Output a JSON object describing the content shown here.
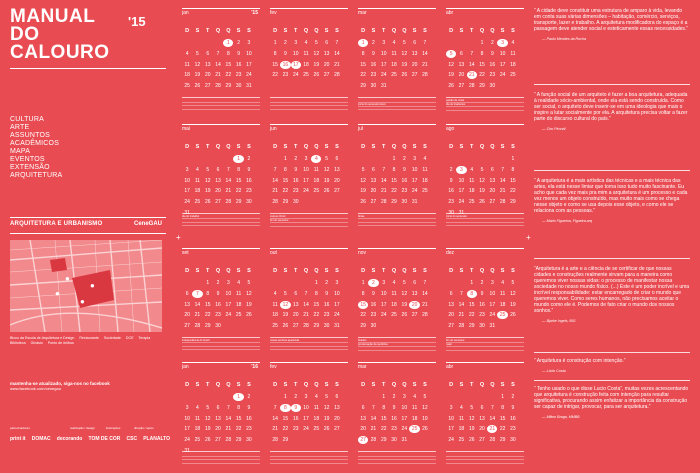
{
  "header": {
    "title_lines": [
      "MANUAL",
      "DO",
      "CALOURO"
    ],
    "year": "'15"
  },
  "menu": [
    "CULTURA",
    "ARTE",
    "ASSUNTOS",
    "ACADÊMICOS",
    "MAPA",
    "EVENTOS",
    "EXTENSÃO",
    "ARQUITETURA"
  ],
  "department": "ARQUITETURA E URBANISMO",
  "org": "CeneGAU",
  "legend": [
    "Bloco da Escola de Arquitetura e Design",
    "Restaurante",
    "Sociedade",
    "DCE",
    "Terapia",
    "Biblioteca",
    "Ginásio",
    "Ponto de ônibus"
  ],
  "facebook": {
    "line1": "mantenha-se atualizado, siga-nos no facebook",
    "line2": "www.facebook.com/cenegau"
  },
  "sponsors": {
    "labels": [
      "patrocinadores",
      "realização / design",
      "ilustrações",
      "direção / apoio"
    ],
    "logos": [
      "print it",
      "DOMAC",
      "decorando",
      "TOM DE COR",
      "CSC",
      "PLANALTO"
    ]
  },
  "weekdays": [
    "D",
    "S",
    "T",
    "Q",
    "Q",
    "S",
    "S"
  ],
  "months": [
    {
      "name": "jan",
      "year": "'15",
      "rows": [
        [
          "",
          "",
          "",
          "",
          "1",
          "2",
          "3"
        ],
        [
          "4",
          "5",
          "6",
          "7",
          "8",
          "9",
          "10"
        ],
        [
          "11",
          "12",
          "13",
          "14",
          "15",
          "16",
          "17"
        ],
        [
          "18",
          "19",
          "20",
          "21",
          "22",
          "23",
          "24"
        ],
        [
          "25",
          "26",
          "27",
          "28",
          "29",
          "30",
          "31"
        ]
      ],
      "notes": [
        "",
        "",
        ""
      ]
    },
    {
      "name": "fev",
      "year": "",
      "rows": [
        [
          "1",
          "2",
          "3",
          "4",
          "5",
          "6",
          "7"
        ],
        [
          "8",
          "9",
          "10",
          "11",
          "12",
          "13",
          "14"
        ],
        [
          "15",
          "16",
          "17",
          "18",
          "19",
          "20",
          "21"
        ],
        [
          "22",
          "23",
          "24",
          "25",
          "26",
          "27",
          "28"
        ]
      ],
      "notes": [
        "",
        "",
        ""
      ]
    },
    {
      "name": "mar",
      "year": "",
      "rows": [
        [
          "1",
          "2",
          "3",
          "4",
          "5",
          "6",
          "7"
        ],
        [
          "8",
          "9",
          "10",
          "11",
          "12",
          "13",
          "14"
        ],
        [
          "15",
          "16",
          "17",
          "18",
          "19",
          "20",
          "21"
        ],
        [
          "22",
          "23",
          "24",
          "25",
          "26",
          "27",
          "28"
        ],
        [
          "29",
          "30",
          "31",
          "",
          "",
          "",
          ""
        ]
      ],
      "notes": [
        "",
        "inicio do semestre letivo",
        ""
      ]
    },
    {
      "name": "abr",
      "year": "",
      "rows": [
        [
          "",
          "",
          "",
          "1",
          "2",
          "3",
          "4"
        ],
        [
          "5",
          "6",
          "7",
          "8",
          "9",
          "10",
          "11"
        ],
        [
          "12",
          "13",
          "14",
          "15",
          "16",
          "17",
          "18"
        ],
        [
          "19",
          "20",
          "21",
          "22",
          "23",
          "24",
          "25"
        ],
        [
          "26",
          "27",
          "28",
          "29",
          "30",
          "",
          ""
        ]
      ],
      "notes": [
        "paixão de cristo",
        "dia de tiradentes",
        ""
      ]
    },
    {
      "name": "mai",
      "year": "",
      "rows": [
        [
          "",
          "",
          "",
          "",
          "",
          "1",
          "2"
        ],
        [
          "3",
          "4",
          "5",
          "6",
          "7",
          "8",
          "9"
        ],
        [
          "10",
          "11",
          "12",
          "13",
          "14",
          "15",
          "16"
        ],
        [
          "17",
          "18",
          "19",
          "20",
          "21",
          "22",
          "23"
        ],
        [
          "24",
          "25",
          "26",
          "27",
          "28",
          "29",
          "30"
        ],
        [
          "31",
          "",
          "",
          "",
          "",
          "",
          ""
        ]
      ],
      "notes": [
        "dia do trabalho",
        "",
        ""
      ]
    },
    {
      "name": "jun",
      "year": "",
      "rows": [
        [
          "",
          "1",
          "2",
          "3",
          "4",
          "5",
          "6"
        ],
        [
          "7",
          "8",
          "9",
          "10",
          "11",
          "12",
          "13"
        ],
        [
          "14",
          "15",
          "16",
          "17",
          "18",
          "19",
          "20"
        ],
        [
          "21",
          "22",
          "23",
          "24",
          "25",
          "26",
          "27"
        ],
        [
          "28",
          "29",
          "30",
          "",
          "",
          "",
          ""
        ]
      ],
      "notes": [
        "corpus christi",
        "fim do semestre",
        ""
      ]
    },
    {
      "name": "jul",
      "year": "",
      "rows": [
        [
          "",
          "",
          "",
          "1",
          "2",
          "3",
          "4"
        ],
        [
          "5",
          "6",
          "7",
          "8",
          "9",
          "10",
          "11"
        ],
        [
          "12",
          "13",
          "14",
          "15",
          "16",
          "17",
          "18"
        ],
        [
          "19",
          "20",
          "21",
          "22",
          "23",
          "24",
          "25"
        ],
        [
          "26",
          "27",
          "28",
          "29",
          "30",
          "31",
          ""
        ]
      ],
      "notes": [
        "férias",
        "",
        ""
      ]
    },
    {
      "name": "ago",
      "year": "",
      "rows": [
        [
          "",
          "",
          "",
          "",
          "",
          "",
          "1"
        ],
        [
          "2",
          "3",
          "4",
          "5",
          "6",
          "7",
          "8"
        ],
        [
          "9",
          "10",
          "11",
          "12",
          "13",
          "14",
          "15"
        ],
        [
          "16",
          "17",
          "18",
          "19",
          "20",
          "21",
          "22"
        ],
        [
          "23",
          "24",
          "25",
          "26",
          "27",
          "28",
          "29"
        ],
        [
          "30",
          "31",
          "",
          "",
          "",
          "",
          ""
        ]
      ],
      "notes": [
        "inicio do semestre",
        "",
        ""
      ]
    },
    {
      "name": "set",
      "year": "",
      "rows": [
        [
          "",
          "",
          "1",
          "2",
          "3",
          "4",
          "5"
        ],
        [
          "6",
          "7",
          "8",
          "9",
          "10",
          "11",
          "12"
        ],
        [
          "13",
          "14",
          "15",
          "16",
          "17",
          "18",
          "19"
        ],
        [
          "20",
          "21",
          "22",
          "23",
          "24",
          "25",
          "26"
        ],
        [
          "27",
          "28",
          "29",
          "30",
          "",
          "",
          ""
        ]
      ],
      "notes": [
        "independência do brasil",
        "",
        ""
      ]
    },
    {
      "name": "out",
      "year": "",
      "rows": [
        [
          "",
          "",
          "",
          "",
          "1",
          "2",
          "3"
        ],
        [
          "4",
          "5",
          "6",
          "7",
          "8",
          "9",
          "10"
        ],
        [
          "11",
          "12",
          "13",
          "14",
          "15",
          "16",
          "17"
        ],
        [
          "18",
          "19",
          "20",
          "21",
          "22",
          "23",
          "24"
        ],
        [
          "25",
          "26",
          "27",
          "28",
          "29",
          "30",
          "31"
        ]
      ],
      "notes": [
        "nossa senhora aparecida",
        "",
        ""
      ]
    },
    {
      "name": "nov",
      "year": "",
      "rows": [
        [
          "1",
          "2",
          "3",
          "4",
          "5",
          "6",
          "7"
        ],
        [
          "8",
          "9",
          "10",
          "11",
          "12",
          "13",
          "14"
        ],
        [
          "15",
          "16",
          "17",
          "18",
          "19",
          "20",
          "21"
        ],
        [
          "22",
          "23",
          "24",
          "25",
          "26",
          "27",
          "28"
        ],
        [
          "29",
          "30",
          "",
          "",
          "",
          "",
          ""
        ]
      ],
      "notes": [
        "finados",
        "proclamação da república",
        ""
      ]
    },
    {
      "name": "dez",
      "year": "",
      "rows": [
        [
          "",
          "",
          "1",
          "2",
          "3",
          "4",
          "5"
        ],
        [
          "6",
          "7",
          "8",
          "9",
          "10",
          "11",
          "12"
        ],
        [
          "13",
          "14",
          "15",
          "16",
          "17",
          "18",
          "19"
        ],
        [
          "20",
          "21",
          "22",
          "23",
          "24",
          "25",
          "26"
        ],
        [
          "27",
          "28",
          "29",
          "30",
          "31",
          "",
          ""
        ]
      ],
      "notes": [
        "fim do semestre",
        "natal",
        ""
      ]
    },
    {
      "name": "jan",
      "year": "'16",
      "rows": [
        [
          "",
          "",
          "",
          "",
          "",
          "1",
          "2"
        ],
        [
          "3",
          "4",
          "5",
          "6",
          "7",
          "8",
          "9"
        ],
        [
          "10",
          "11",
          "12",
          "13",
          "14",
          "15",
          "16"
        ],
        [
          "17",
          "18",
          "19",
          "20",
          "21",
          "22",
          "23"
        ],
        [
          "24",
          "25",
          "26",
          "27",
          "28",
          "29",
          "30"
        ],
        [
          "31",
          "",
          "",
          "",
          "",
          "",
          ""
        ]
      ],
      "notes": [
        "",
        "",
        ""
      ]
    },
    {
      "name": "fev",
      "year": "",
      "rows": [
        [
          "",
          "1",
          "2",
          "3",
          "4",
          "5",
          "6"
        ],
        [
          "7",
          "8",
          "9",
          "10",
          "11",
          "12",
          "13"
        ],
        [
          "14",
          "15",
          "16",
          "17",
          "18",
          "19",
          "20"
        ],
        [
          "21",
          "22",
          "23",
          "24",
          "25",
          "26",
          "27"
        ],
        [
          "28",
          "29",
          "",
          "",
          "",
          "",
          ""
        ]
      ],
      "notes": [
        "",
        "",
        ""
      ]
    },
    {
      "name": "mar",
      "year": "",
      "rows": [
        [
          "",
          "",
          "1",
          "2",
          "3",
          "4",
          "5"
        ],
        [
          "6",
          "7",
          "8",
          "9",
          "10",
          "11",
          "12"
        ],
        [
          "13",
          "14",
          "15",
          "16",
          "17",
          "18",
          "19"
        ],
        [
          "20",
          "21",
          "22",
          "23",
          "24",
          "25",
          "26"
        ],
        [
          "27",
          "28",
          "29",
          "30",
          "31",
          "",
          ""
        ]
      ],
      "notes": [
        "",
        "",
        ""
      ]
    },
    {
      "name": "abr",
      "year": "",
      "rows": [
        [
          "",
          "",
          "",
          "",
          "",
          "1",
          "2"
        ],
        [
          "3",
          "4",
          "5",
          "6",
          "7",
          "8",
          "9"
        ],
        [
          "10",
          "11",
          "12",
          "13",
          "14",
          "15",
          "16"
        ],
        [
          "17",
          "18",
          "19",
          "20",
          "21",
          "22",
          "23"
        ],
        [
          "24",
          "25",
          "26",
          "27",
          "28",
          "29",
          "30"
        ]
      ],
      "notes": [
        "",
        "",
        ""
      ]
    }
  ],
  "highlighted_days": {
    "0": [
      "1"
    ],
    "1": [
      "16",
      "17"
    ],
    "2": [
      "1"
    ],
    "3": [
      "3",
      "5",
      "21"
    ],
    "4": [
      "1"
    ],
    "5": [
      "4"
    ],
    "6": [],
    "7": [
      "3"
    ],
    "8": [
      "7"
    ],
    "9": [
      "12"
    ],
    "10": [
      "2",
      "15",
      "20"
    ],
    "11": [
      "8",
      "25"
    ],
    "12": [
      "1"
    ],
    "13": [
      "8",
      "9"
    ],
    "14": [
      "25",
      "27"
    ],
    "15": [
      "21"
    ]
  },
  "quotes": [
    {
      "text": "“ A cidade deve constituir uma estrutura de amparo à vida, levando em conta suas várias dimensões – habitação, comércio, serviços, transporte, lazer e trabalho. A arquitetura modificadora do espaço é a passagem deve atender social e esteticamente essas necessidades.”",
      "author": "— Paulo Mendes da Rocha"
    },
    {
      "text": "“ A função social de um arquiteto é fazer a boa arquitetura, adequada à realidade sócio-ambiental, onde ela está sendo construída. Como ser social, o arquiteto deve inserir-se em uma ideologia que mais o inspire a lutar socialmente por ela. A arquitetura precisa voltar a fazer parte do discurso cultural do país.”",
      "author": "— Ciro Pirondi"
    },
    {
      "text": "“ A arquitetura é a mais artística das técnicas e a mais técnica das artes, ela está nesse limiar que torna isso tudo muito fascinante. Eu acho que cada vez mais pra mim a arquitetura é um processo e cada vez menos um objeto construído, mas muito mais como se chega nesse objeto e como se usa depois esse objeto, e como ele se relaciona com as pessoas.”",
      "author": "— Mario Figueroa, Figueira.arq"
    },
    {
      "text": "“Arquitetura é a arte e a ciência de se certificar de que nossas cidades e construções realmente sirvam para a maneira como queremos viver nossas vidas: o processo de manifestar nossa sociedade no nosso mundo físico. (...) Este é um poder incrível e uma incrível responsabilidade: estar encarregado de criar o mundo que queremos viver. Como seres humanos, não precisamos aceitar o mundo como ele é. Podemos de fato criar o mundo dos nossos sonhos.”",
      "author": "— Bjarke Ingels, BIG"
    },
    {
      "text": "“ Arquitetura é construção com intenção.”",
      "author": "— Lúcio Costa"
    },
    {
      "text": "“ Tenho usado o que disse Lucio Costa”, muitas vezes acrescentando que arquitetura é construção feita com intenção para resultar significativa, procurando assim enfatizar a importância da construção ser capaz de intrigar, provocar, para ser arquitetura.”",
      "author": "— Milton Braga, MMBB"
    }
  ]
}
